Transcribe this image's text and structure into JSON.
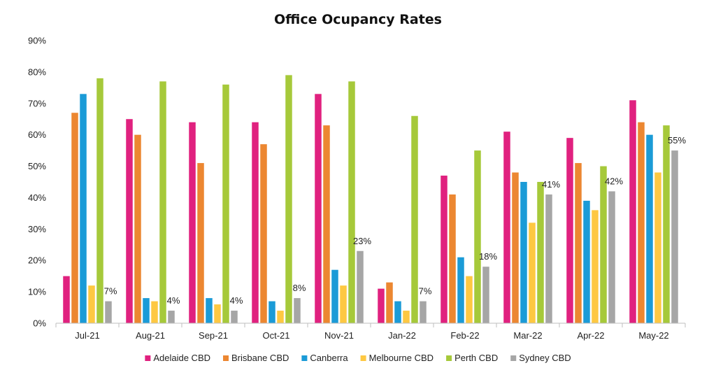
{
  "chart_data": {
    "type": "bar",
    "title": "Office Ocupancy Rates",
    "xlabel": "",
    "ylabel": "",
    "ylim": [
      0,
      90
    ],
    "yticks": [
      0,
      10,
      20,
      30,
      40,
      50,
      60,
      70,
      80,
      90
    ],
    "ytick_suffix": "%",
    "grid": false,
    "legend_position": "bottom",
    "categories": [
      "Jul-21",
      "Aug-21",
      "Sep-21",
      "Oct-21",
      "Nov-21",
      "Jan-22",
      "Feb-22",
      "Mar-22",
      "Apr-22",
      "May-22"
    ],
    "series": [
      {
        "name": "Adelaide CBD",
        "color": "#e0217f",
        "values": [
          15,
          65,
          64,
          64,
          73,
          11,
          47,
          61,
          59,
          71
        ]
      },
      {
        "name": "Brisbane CBD",
        "color": "#ec8731",
        "values": [
          67,
          60,
          51,
          57,
          63,
          13,
          41,
          48,
          51,
          64
        ]
      },
      {
        "name": "Canberra",
        "color": "#1b9bd7",
        "values": [
          73,
          8,
          8,
          7,
          17,
          7,
          21,
          45,
          39,
          60
        ]
      },
      {
        "name": "Melbourne CBD",
        "color": "#fec842",
        "values": [
          12,
          7,
          6,
          4,
          12,
          4,
          15,
          32,
          36,
          48
        ]
      },
      {
        "name": "Perth CBD",
        "color": "#a6c93a",
        "values": [
          78,
          77,
          76,
          79,
          77,
          66,
          55,
          45,
          50,
          63
        ]
      },
      {
        "name": "Sydney CBD",
        "color": "#a6a6a6",
        "values": [
          7,
          4,
          4,
          8,
          23,
          7,
          18,
          41,
          42,
          55
        ]
      }
    ],
    "data_labels": {
      "series": "Sydney CBD",
      "labels": [
        "7%",
        "4%",
        "4%",
        "8%",
        "23%",
        "7%",
        "18%",
        "41%",
        "42%",
        "55%"
      ]
    }
  }
}
